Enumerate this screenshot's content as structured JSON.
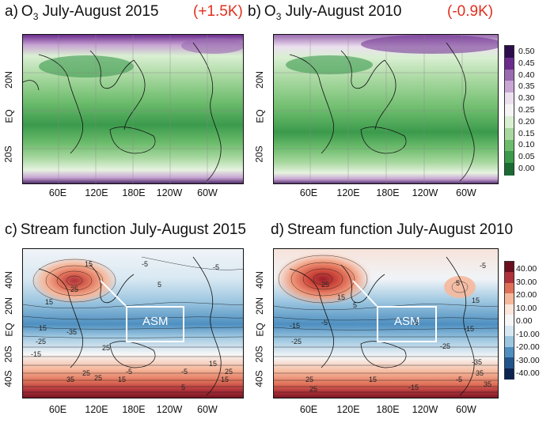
{
  "panels": [
    {
      "letter": "a)",
      "title_main": "O",
      "title_sub": "3",
      "title_rest": " July-August 2015",
      "anomaly": "(+1.5K)"
    },
    {
      "letter": "b)",
      "title_main": "O",
      "title_sub": "3",
      "title_rest": " July-August 2010",
      "anomaly": "(-0.9K)"
    },
    {
      "letter": "c)",
      "title_rest": "Stream function July-August 2015"
    },
    {
      "letter": "d)",
      "title_rest": "Stream function July-August 2010"
    }
  ],
  "axes": {
    "ozone_lat_ticks": [
      "20N",
      "EQ",
      "20S"
    ],
    "sf_lat_ticks": [
      "40N",
      "20N",
      "EQ",
      "20S",
      "40S"
    ],
    "lon_ticks": [
      "60E",
      "120E",
      "180E",
      "120W",
      "60W"
    ]
  },
  "colorbars": {
    "ozone": {
      "ticks": [
        "0.50",
        "0.45",
        "0.40",
        "0.35",
        "0.30",
        "0.25",
        "0.20",
        "0.15",
        "0.10",
        "0.05",
        "0.00"
      ],
      "colors": [
        "#2d0d4c",
        "#6b2c8e",
        "#9a6bb0",
        "#c9a6d4",
        "#ece0ef",
        "#f5f5f5",
        "#d9efd2",
        "#a8d8a0",
        "#6cbc6c",
        "#3b9a4c",
        "#1a6a32"
      ]
    },
    "stream": {
      "ticks": [
        "40.00",
        "30.00",
        "20.00",
        "10.00",
        "0.00",
        "-10.00",
        "-20.00",
        "-30.00",
        "-40.00"
      ],
      "colors": [
        "#6b0f1e",
        "#b0323a",
        "#e07058",
        "#f6b89c",
        "#fbe6dc",
        "#f7f7f7",
        "#d8e8f2",
        "#9cc6e0",
        "#4e8fc0",
        "#22548c",
        "#0c2450"
      ]
    }
  },
  "annotations": {
    "asm_label": "ASM"
  },
  "contour_labels": {
    "c": [
      "15",
      "25",
      "15",
      "-5",
      "5",
      "15",
      "-25",
      "-35",
      "25",
      "-15",
      "-5",
      "-5",
      "15",
      "25",
      "35",
      "25",
      "25",
      "15",
      "5",
      "15",
      "-5"
    ],
    "d": [
      "-5",
      "25",
      "15",
      "5",
      "-15",
      "-5",
      "5",
      "15",
      "-25",
      "-5",
      "-15",
      "25",
      "-35",
      "-25",
      "35",
      "35",
      "25",
      "-15",
      "-5",
      "15"
    ]
  }
}
